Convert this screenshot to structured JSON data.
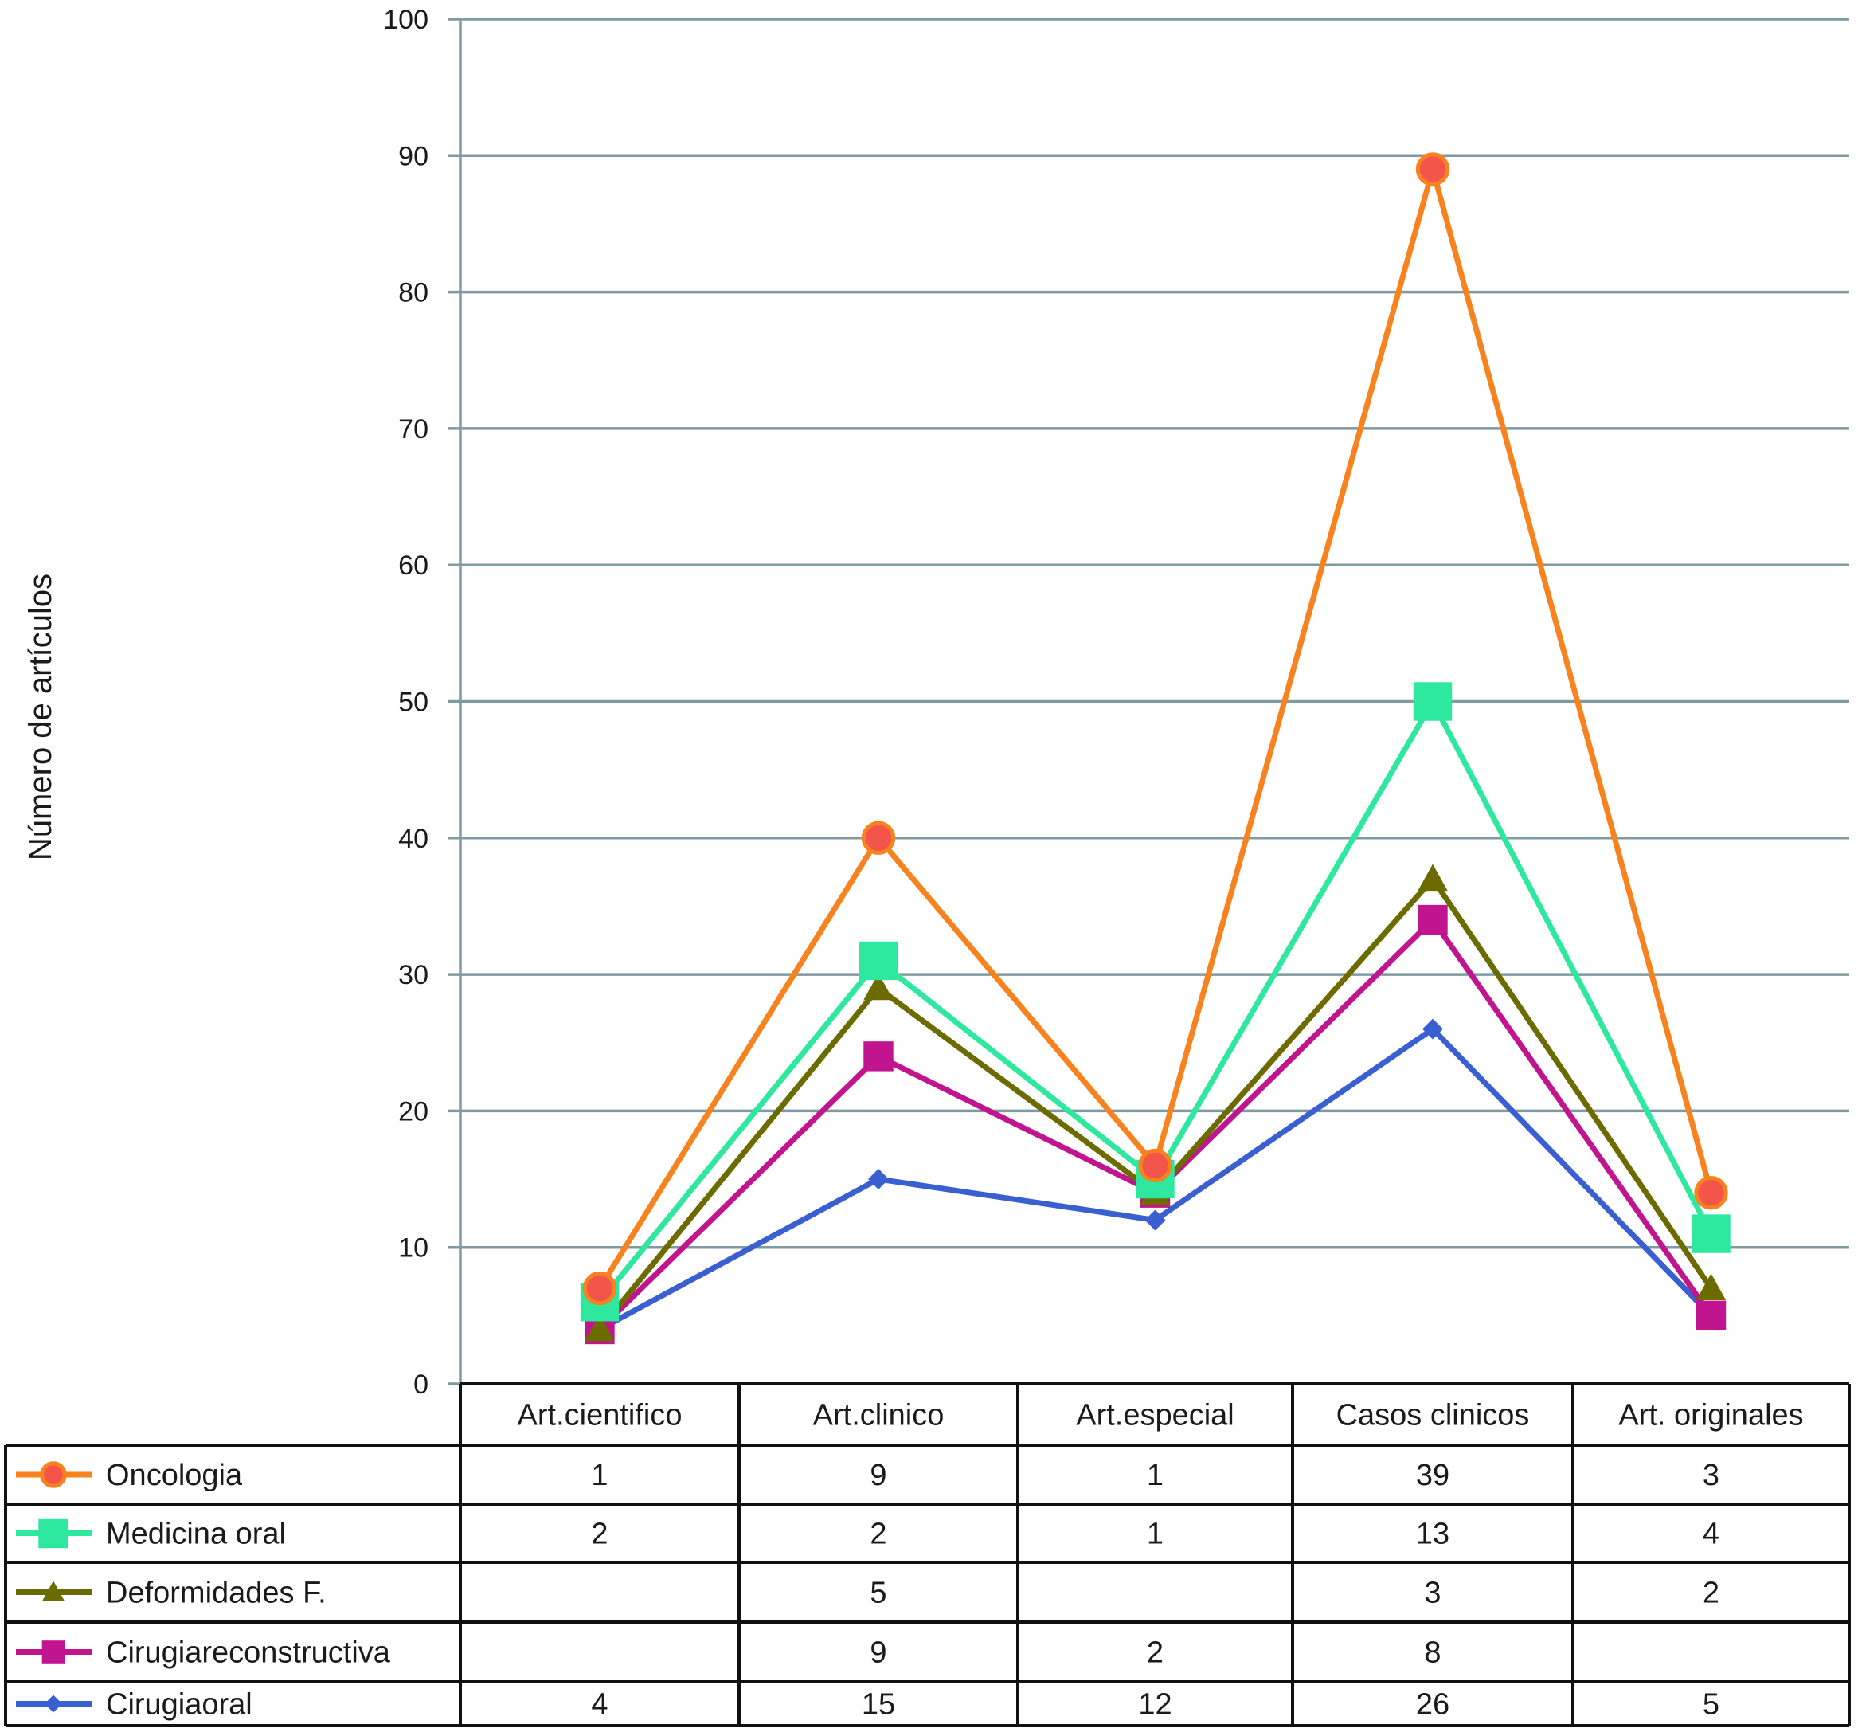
{
  "chart_data": {
    "type": "line",
    "ylabel": "Número de artículos",
    "xlabel": "",
    "ylim": [
      0,
      100
    ],
    "yticks": [
      0,
      10,
      20,
      30,
      40,
      50,
      60,
      70,
      80,
      90,
      100
    ],
    "grid": true,
    "stacked": true,
    "categories": [
      "Art.cientifico",
      "Art.clinico",
      "Art.especial",
      "Casos clinicos",
      "Art. originales"
    ],
    "series": [
      {
        "name": "Oncologia",
        "color": "#f7821e",
        "marker": "circle",
        "values": [
          1,
          9,
          1,
          39,
          3
        ],
        "cell_text": [
          "1",
          "9",
          "1",
          "39",
          "3"
        ]
      },
      {
        "name": "Medicina oral",
        "color": "#2ee8a0",
        "marker": "square",
        "values": [
          2,
          2,
          1,
          13,
          4
        ],
        "cell_text": [
          "2",
          "2",
          "1",
          "13",
          "4"
        ]
      },
      {
        "name": "Deformidades F.",
        "color": "#6b6b00",
        "marker": "triangle",
        "values": [
          null,
          5,
          null,
          3,
          2
        ],
        "cell_text": [
          "",
          "5",
          "",
          "3",
          "2"
        ]
      },
      {
        "name": "Cirugiareconstructiva",
        "color": "#c0158f",
        "marker": "square",
        "values": [
          null,
          9,
          2,
          8,
          null
        ],
        "cell_text": [
          "",
          "9",
          "2",
          "8",
          ""
        ]
      },
      {
        "name": "Cirugiaoral",
        "color": "#3a5fd0",
        "marker": "diamond",
        "values": [
          4,
          15,
          12,
          26,
          5
        ],
        "cell_text": [
          "4",
          "15",
          "12",
          "26",
          "5"
        ]
      }
    ]
  }
}
